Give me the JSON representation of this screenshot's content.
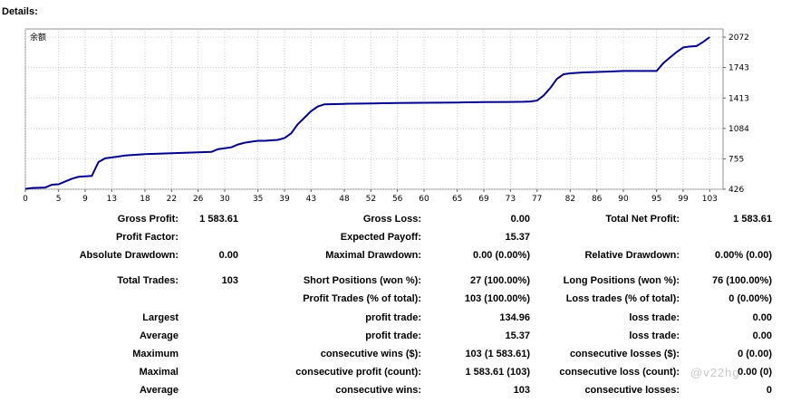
{
  "heading": "Details:",
  "chart_data": {
    "type": "line",
    "legend": "余额",
    "ylim": [
      426,
      2160
    ],
    "yticks": [
      426,
      755,
      1084,
      1413,
      1743,
      2072
    ],
    "xlim": [
      0,
      105
    ],
    "xticks": [
      0,
      5,
      9,
      13,
      18,
      22,
      26,
      30,
      35,
      39,
      43,
      48,
      52,
      56,
      60,
      65,
      69,
      73,
      77,
      82,
      86,
      90,
      95,
      99,
      103
    ],
    "line_color": "#00008b",
    "grid": true,
    "series": [
      {
        "x": [
          0,
          1,
          2,
          3,
          4,
          5,
          6,
          7,
          8,
          9,
          10,
          11,
          12,
          13,
          14,
          15,
          16,
          17,
          18,
          20,
          22,
          24,
          26,
          28,
          29,
          30,
          31,
          32,
          33,
          34,
          35,
          36,
          37,
          38,
          39,
          40,
          41,
          42,
          43,
          44,
          45,
          48,
          52,
          56,
          60,
          65,
          69,
          73,
          75,
          76,
          77,
          78,
          79,
          80,
          81,
          82,
          83,
          84,
          86,
          88,
          90,
          92,
          94,
          95,
          96,
          97,
          98,
          99,
          100,
          101,
          102,
          103
        ],
        "y": [
          430,
          440,
          442,
          445,
          475,
          480,
          510,
          540,
          560,
          565,
          570,
          720,
          760,
          770,
          780,
          790,
          795,
          800,
          805,
          810,
          815,
          820,
          825,
          830,
          860,
          870,
          880,
          910,
          930,
          940,
          950,
          950,
          955,
          960,
          980,
          1030,
          1130,
          1200,
          1270,
          1320,
          1345,
          1350,
          1355,
          1360,
          1362,
          1365,
          1368,
          1370,
          1372,
          1375,
          1385,
          1440,
          1520,
          1620,
          1670,
          1680,
          1685,
          1690,
          1695,
          1700,
          1705,
          1705,
          1705,
          1705,
          1790,
          1850,
          1910,
          1960,
          1970,
          1975,
          2020,
          2072
        ]
      }
    ]
  },
  "stats": {
    "gross_profit_label": "Gross Profit:",
    "gross_profit": "1 583.61",
    "gross_loss_label": "Gross Loss:",
    "gross_loss": "0.00",
    "total_net_profit_label": "Total Net Profit:",
    "total_net_profit": "1 583.61",
    "profit_factor_label": "Profit Factor:",
    "expected_payoff_label": "Expected Payoff:",
    "expected_payoff": "15.37",
    "absolute_drawdown_label": "Absolute Drawdown:",
    "absolute_drawdown": "0.00",
    "maximal_drawdown_label": "Maximal Drawdown:",
    "maximal_drawdown": "0.00 (0.00%)",
    "relative_drawdown_label": "Relative Drawdown:",
    "relative_drawdown": "0.00% (0.00)",
    "total_trades_label": "Total Trades:",
    "total_trades": "103",
    "short_positions_label": "Short Positions (won %):",
    "short_positions": "27 (100.00%)",
    "long_positions_label": "Long Positions (won %):",
    "long_positions": "76 (100.00%)",
    "profit_trades_label": "Profit Trades (% of total):",
    "profit_trades": "103 (100.00%)",
    "loss_trades_label": "Loss trades (% of total):",
    "loss_trades": "0 (0.00%)",
    "largest_label": "Largest",
    "largest_profit_label": "profit trade:",
    "largest_profit": "134.96",
    "largest_loss_label": "loss trade:",
    "largest_loss": "0.00",
    "average_label": "Average",
    "average_profit_label": "profit trade:",
    "average_profit": "15.37",
    "average_loss_label": "loss trade:",
    "average_loss": "0.00",
    "maximum_label": "Maximum",
    "max_consec_wins_label": "consecutive wins ($):",
    "max_consec_wins": "103 (1 583.61)",
    "max_consec_losses_label": "consecutive losses ($):",
    "max_consec_losses": "0 (0.00)",
    "maximal_label": "Maximal",
    "maximal_consec_profit_label": "consecutive profit (count):",
    "maximal_consec_profit": "1 583.61 (103)",
    "maximal_consec_loss_label": "consecutive loss (count):",
    "maximal_consec_loss": "0.00 (0)",
    "avg_label": "Average",
    "avg_consec_wins_label": "consecutive wins:",
    "avg_consec_wins": "103",
    "avg_consec_losses_label": "consecutive losses:",
    "avg_consec_losses": "0"
  },
  "watermark": "@v22hg"
}
